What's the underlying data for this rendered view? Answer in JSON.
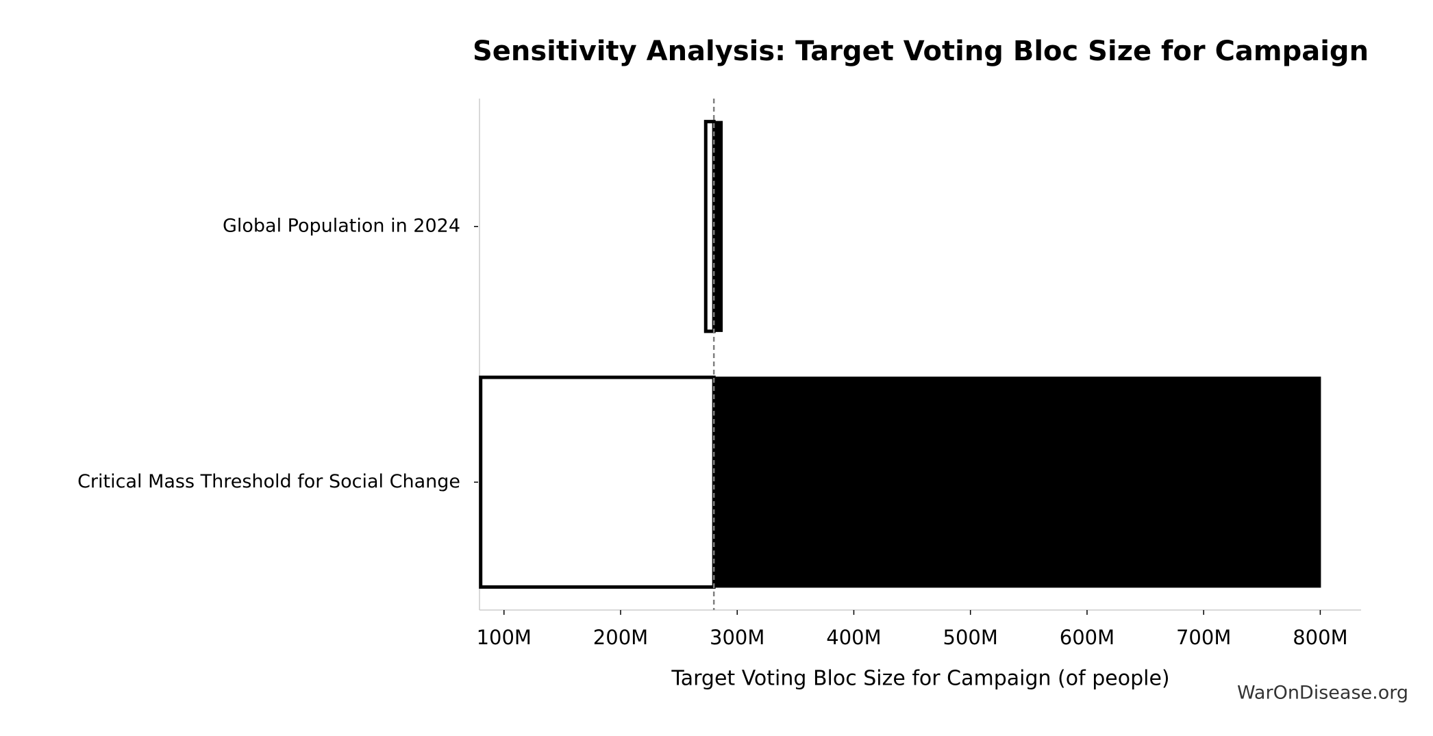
{
  "chart_data": {
    "type": "tornado",
    "title": "Sensitivity Analysis: Target Voting Bloc Size for Campaign",
    "xlabel": "Target Voting Bloc Size for Campaign (of people)",
    "watermark": "WarOnDisease.org",
    "categories": [
      "Global Population in 2024",
      "Critical Mass Threshold for Social Change"
    ],
    "baseline": 280000000,
    "low_values": [
      273000000,
      80000000
    ],
    "high_values": [
      287000000,
      800000000
    ],
    "low_color": "#ffffff",
    "high_color": "#000000",
    "xlim": [
      79000000,
      835000000
    ],
    "xticks": [
      {
        "value": 100000000,
        "label": "100M"
      },
      {
        "value": 200000000,
        "label": "200M"
      },
      {
        "value": 300000000,
        "label": "300M"
      },
      {
        "value": 400000000,
        "label": "400M"
      },
      {
        "value": 500000000,
        "label": "500M"
      },
      {
        "value": 600000000,
        "label": "600M"
      },
      {
        "value": 700000000,
        "label": "700M"
      },
      {
        "value": 800000000,
        "label": "800M"
      }
    ]
  }
}
